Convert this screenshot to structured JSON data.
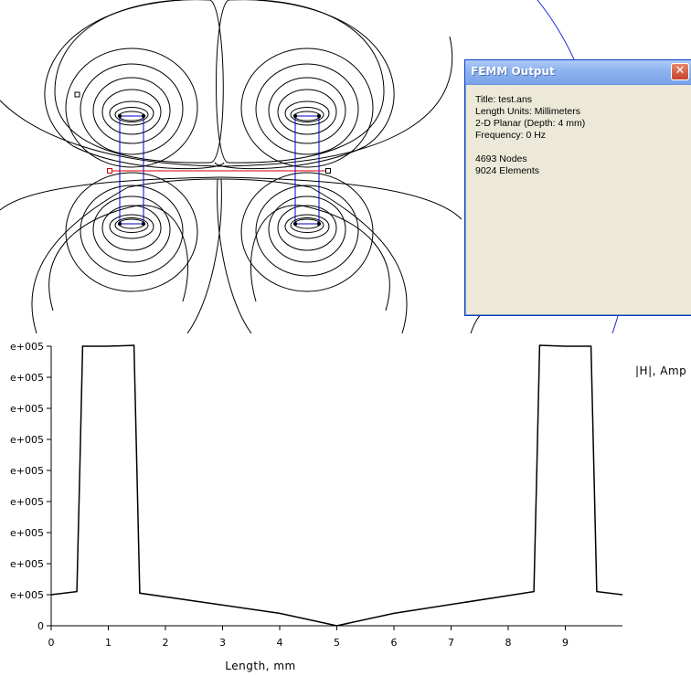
{
  "femm_window": {
    "title": "FEMM Output",
    "close_symbol": "✕",
    "info": {
      "title_line": "Title: test.ans",
      "length_units_line": "Length Units: Millimeters",
      "planar_line": "2-D Planar (Depth: 4 mm)",
      "frequency_line": "Frequency: 0 Hz",
      "nodes_line": "4693 Nodes",
      "elements_line": "9024 Elements"
    }
  },
  "colors": {
    "contour": "#000000",
    "conductor_outline": "#0000cc",
    "contour_line_segment": "#cc0000",
    "window_border": "#0a3cc8"
  },
  "chart_data": {
    "type": "line",
    "xlabel": "Length, mm",
    "series": [
      {
        "name": "|H|, Amp",
        "x": [
          0,
          0.45,
          0.5,
          0.55,
          1.0,
          1.45,
          1.5,
          1.55,
          4.0,
          5.0,
          6.0,
          8.45,
          8.5,
          8.55,
          9.0,
          9.45,
          9.5,
          9.55,
          10.0
        ],
        "y": [
          1.0,
          1.1,
          5.0,
          9.0,
          9.0,
          9.03,
          5.0,
          1.05,
          0.4,
          0.0,
          0.4,
          1.1,
          5.0,
          9.03,
          9.0,
          9.0,
          5.0,
          1.1,
          1.0
        ]
      }
    ],
    "xlim": [
      0,
      10
    ],
    "ylim": [
      0,
      9
    ],
    "xticks": [
      0,
      1,
      2,
      3,
      4,
      5,
      6,
      7,
      8,
      9
    ],
    "yticks": [
      {
        "value": 0,
        "label": "0"
      },
      {
        "value": 1,
        "label": "e+005"
      },
      {
        "value": 2,
        "label": "e+005"
      },
      {
        "value": 3,
        "label": "e+005"
      },
      {
        "value": 4,
        "label": "e+005"
      },
      {
        "value": 5,
        "label": "e+005"
      },
      {
        "value": 6,
        "label": "e+005"
      },
      {
        "value": 7,
        "label": "e+005"
      },
      {
        "value": 8,
        "label": "e+005"
      },
      {
        "value": 9,
        "label": "e+005"
      }
    ]
  }
}
